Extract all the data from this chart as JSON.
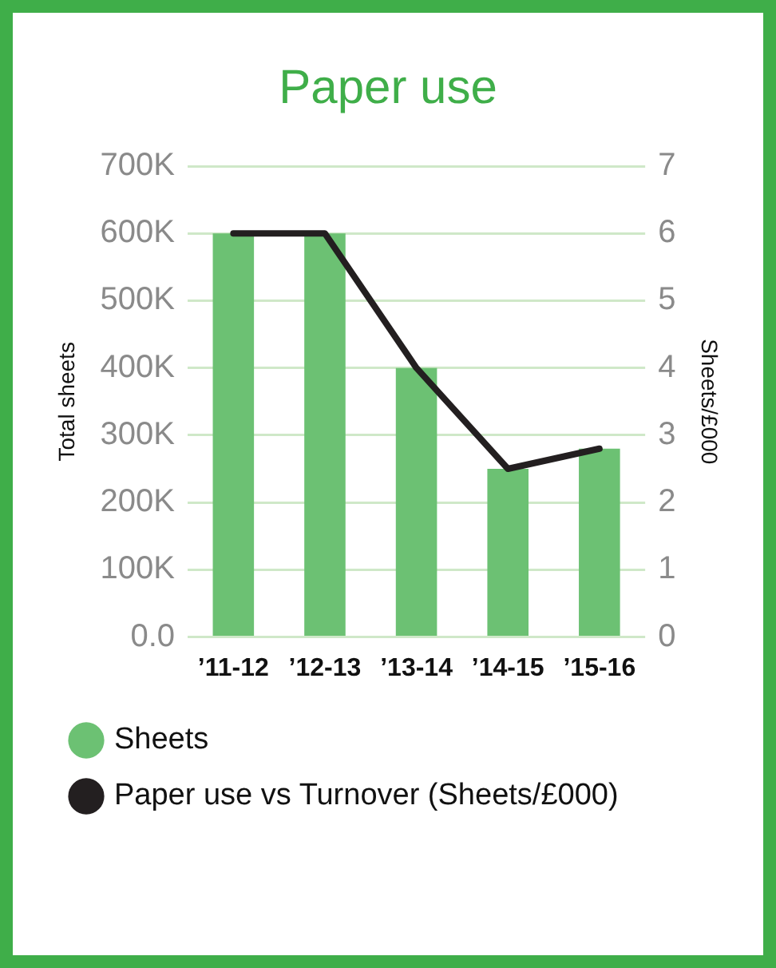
{
  "chart_data": {
    "type": "bar",
    "title": "Paper use",
    "ylabel": "Total sheets",
    "y2label": "Sheets/£000",
    "categories": [
      "’11-12",
      "’12-13",
      "’13-14",
      "’14-15",
      "’15-16"
    ],
    "series": [
      {
        "name": "Sheets",
        "color": "#6cc173",
        "values": [
          600000,
          600000,
          400000,
          250000,
          280000
        ]
      },
      {
        "name": "Paper use vs Turnover (Sheets/£000)",
        "type": "line",
        "axis": "y2",
        "color": "#231f20",
        "values": [
          6,
          6,
          4,
          2.5,
          2.8
        ]
      }
    ],
    "ylim": [
      0,
      700000
    ],
    "yticks": [
      {
        "value": 0,
        "label": "0.0"
      },
      {
        "value": 100000,
        "label": "100K"
      },
      {
        "value": 200000,
        "label": "200K"
      },
      {
        "value": 300000,
        "label": "300K"
      },
      {
        "value": 400000,
        "label": "400K"
      },
      {
        "value": 500000,
        "label": "500K"
      },
      {
        "value": 600000,
        "label": "600K"
      },
      {
        "value": 700000,
        "label": "700K"
      }
    ],
    "y2lim": [
      0,
      7
    ],
    "y2ticks": [
      0,
      1,
      2,
      3,
      4,
      5,
      6,
      7
    ],
    "grid": "y",
    "legend": "bottom",
    "marker": "none"
  }
}
